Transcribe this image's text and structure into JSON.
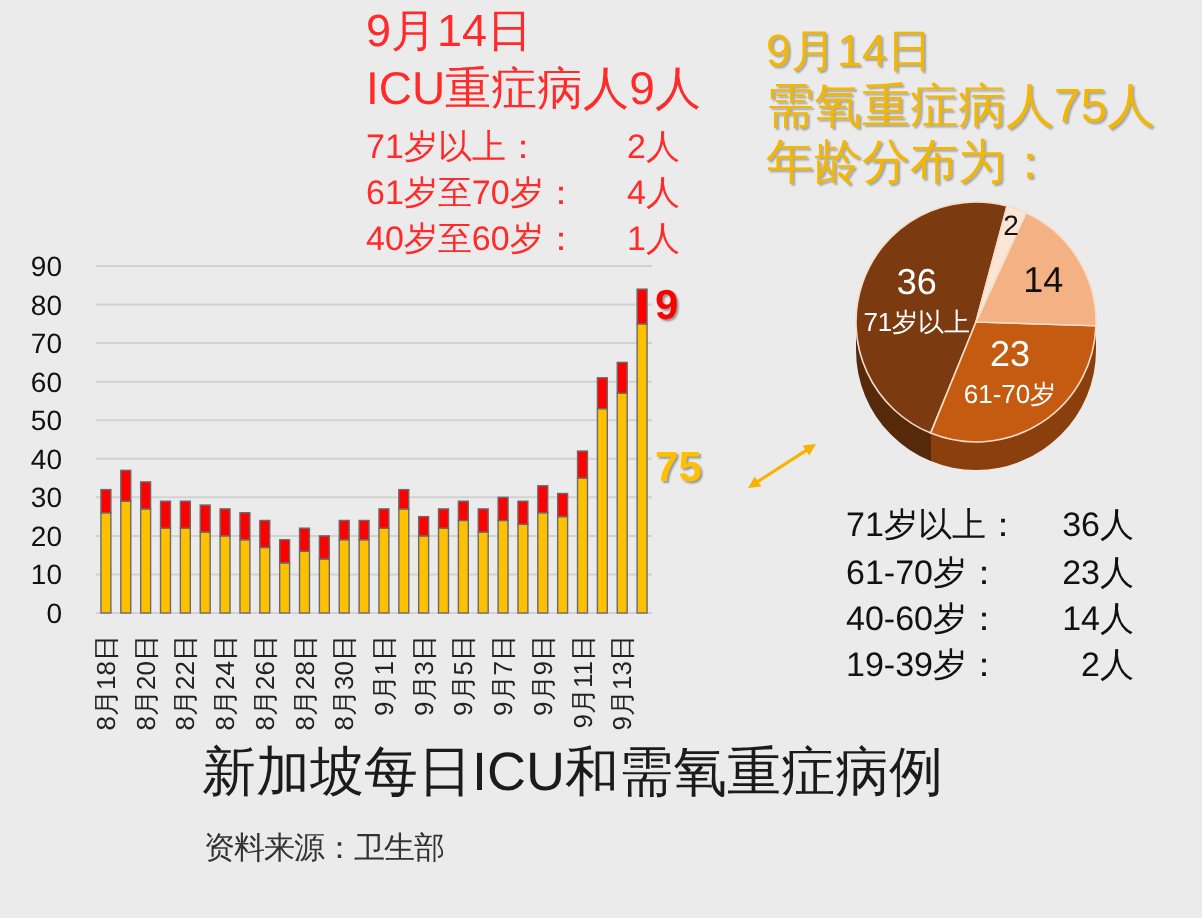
{
  "chart_data": [
    {
      "type": "bar",
      "stacked": true,
      "title": "新加坡每日ICU和需氧重症病例",
      "categories": [
        "8月18日",
        null,
        "8月20日",
        null,
        "8月22日",
        null,
        "8月24日",
        null,
        "8月26日",
        null,
        "8月28日",
        null,
        "8月30日",
        null,
        "9月1日",
        null,
        "9月3日",
        null,
        "9月5日",
        null,
        "9月7日",
        null,
        "9月9日",
        null,
        "9月11日",
        null,
        "9月13日",
        null
      ],
      "series": [
        {
          "color": "#ffc000",
          "values": [
            26,
            29,
            27,
            22,
            22,
            21,
            20,
            19,
            17,
            13,
            16,
            14,
            19,
            19,
            22,
            27,
            20,
            22,
            24,
            21,
            24,
            23,
            26,
            25,
            35,
            53,
            57,
            75
          ],
          "value_labels": [
            null,
            null,
            null,
            null,
            null,
            null,
            null,
            null,
            null,
            null,
            null,
            null,
            null,
            null,
            null,
            null,
            null,
            null,
            null,
            null,
            null,
            null,
            null,
            null,
            null,
            null,
            null,
            "75"
          ]
        },
        {
          "color": "#ff0000",
          "values": [
            6,
            8,
            7,
            7,
            7,
            7,
            7,
            7,
            7,
            6,
            6,
            6,
            5,
            5,
            5,
            5,
            5,
            5,
            5,
            6,
            6,
            6,
            7,
            6,
            7,
            8,
            8,
            9
          ],
          "value_labels": [
            null,
            null,
            null,
            null,
            null,
            null,
            null,
            null,
            null,
            null,
            null,
            null,
            null,
            null,
            null,
            null,
            null,
            null,
            null,
            null,
            null,
            null,
            null,
            null,
            null,
            null,
            null,
            "9"
          ]
        }
      ],
      "ylim": [
        0,
        90
      ],
      "yticks": [
        0,
        10,
        20,
        30,
        40,
        50,
        60,
        70,
        80,
        90
      ],
      "grid": "y",
      "annotations": [
        "9月14日",
        "ICU重症病人9人",
        "71岁以上： 2人",
        "61岁至70岁： 4人",
        "40岁至60岁： 1人",
        "资料来源：卫生部"
      ]
    },
    {
      "type": "pie",
      "title": "9月14日",
      "subtitle": "需氧重症病人75人年龄分布为：",
      "categories": [
        "71岁以上",
        "61-70岁",
        null,
        null
      ],
      "values": [
        36,
        23,
        14,
        2
      ],
      "colors": [
        "#7b3a10",
        "#c55a11",
        "#f4b183",
        "#fbe5d6"
      ],
      "data_labels": true,
      "annotations": [
        "71岁以上： 36人",
        "61-70岁： 23人",
        "40-60岁： 14人",
        "19-39岁： 2人"
      ]
    }
  ]
}
